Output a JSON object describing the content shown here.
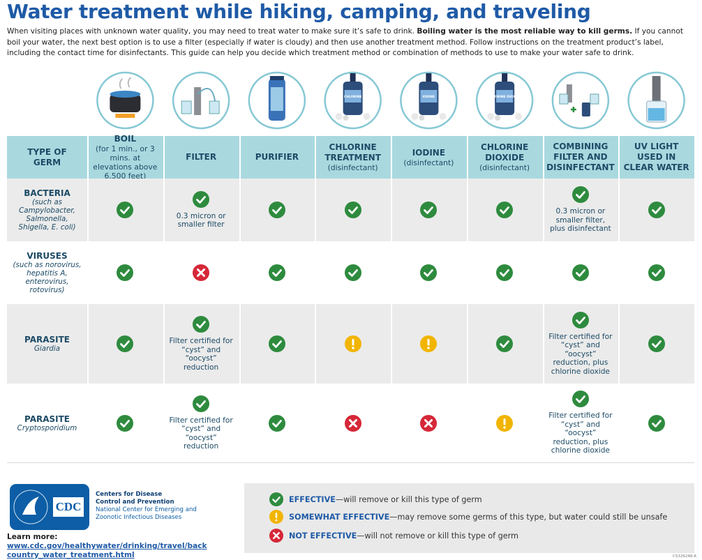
{
  "title": "Water treatment while hiking, camping, and traveling",
  "intro": {
    "lead": "When visiting places with unknown water quality, you may need to treat water to make sure it’s safe to drink. ",
    "emphasis": "Boiling water is the most reliable way to kill germs.",
    "rest": " If you cannot boil your water, the next best option is to use a filter (especially if water is cloudy) and then use another treatment method. Follow instructions on the treatment product’s label, including the contact time for disinfectants. This guide can help you decide which treatment method or combination of methods to use to make your water safe to drink."
  },
  "table": {
    "header": "TYPE OF GERM",
    "columns": [
      {
        "name": "BOIL",
        "note": "(for 1 min., or 3 mins. at elevations above 6,500 feet)"
      },
      {
        "name": "FILTER"
      },
      {
        "name": "PURIFIER"
      },
      {
        "name": "CHLORINE TREATMENT",
        "note": "(disinfectant)",
        "icon_label": "CHLORINE"
      },
      {
        "name": "IODINE",
        "note": "(disinfectant)",
        "icon_label": "IODINE"
      },
      {
        "name": "CHLORINE DIOXIDE",
        "note": "(disinfectant)",
        "icon_label": "CHLORINE DIOXIDE"
      },
      {
        "name": "COMBINING FILTER AND DISINFECTANT"
      },
      {
        "name": "UV LIGHT USED IN CLEAR WATER"
      }
    ],
    "rows": [
      {
        "germ": "BACTERIA",
        "note": "(such as Campylobacter, Salmonella, Shigella, E. coli)",
        "cells": [
          {
            "rating": "EFFECTIVE"
          },
          {
            "rating": "EFFECTIVE",
            "note": "0.3 micron or smaller filter"
          },
          {
            "rating": "EFFECTIVE"
          },
          {
            "rating": "EFFECTIVE"
          },
          {
            "rating": "EFFECTIVE"
          },
          {
            "rating": "EFFECTIVE"
          },
          {
            "rating": "EFFECTIVE",
            "note": "0.3 micron or smaller filter, plus disinfectant"
          },
          {
            "rating": "EFFECTIVE"
          }
        ]
      },
      {
        "germ": "VIRUSES",
        "note": "(such as norovirus, hepatitis A, enterovirus, rotovirus)",
        "cells": [
          {
            "rating": "EFFECTIVE"
          },
          {
            "rating": "NOT EFFECTIVE"
          },
          {
            "rating": "EFFECTIVE"
          },
          {
            "rating": "EFFECTIVE"
          },
          {
            "rating": "EFFECTIVE"
          },
          {
            "rating": "EFFECTIVE"
          },
          {
            "rating": "EFFECTIVE"
          },
          {
            "rating": "EFFECTIVE"
          }
        ]
      },
      {
        "germ": "PARASITE",
        "note": "Giardia",
        "cells": [
          {
            "rating": "EFFECTIVE"
          },
          {
            "rating": "EFFECTIVE",
            "note": "Filter certified for “cyst” and “oocyst” reduction"
          },
          {
            "rating": "EFFECTIVE"
          },
          {
            "rating": "SOMEWHAT EFFECTIVE"
          },
          {
            "rating": "SOMEWHAT EFFECTIVE"
          },
          {
            "rating": "EFFECTIVE"
          },
          {
            "rating": "EFFECTIVE",
            "note": "Filter certified for “cyst” and “oocyst” reduction, plus chlorine dioxide"
          },
          {
            "rating": "EFFECTIVE"
          }
        ]
      },
      {
        "germ": "PARASITE",
        "note": "Cryptosporidium",
        "cells": [
          {
            "rating": "EFFECTIVE"
          },
          {
            "rating": "EFFECTIVE",
            "note": "Filter certified for “cyst” and “oocyst” reduction"
          },
          {
            "rating": "EFFECTIVE"
          },
          {
            "rating": "NOT EFFECTIVE"
          },
          {
            "rating": "NOT EFFECTIVE"
          },
          {
            "rating": "SOMEWHAT EFFECTIVE"
          },
          {
            "rating": "EFFECTIVE",
            "note": "Filter certified for “cyst” and “oocyst” reduction, plus chlorine dioxide"
          },
          {
            "rating": "EFFECTIVE"
          }
        ]
      }
    ]
  },
  "legend": [
    {
      "label": "EFFECTIVE",
      "text": "—will remove or kill this type of germ"
    },
    {
      "label": "SOMEWHAT EFFECTIVE",
      "text": "—may remove some germs of this type, but water could still be unsafe"
    },
    {
      "label": "NOT EFFECTIVE",
      "text": "—will not remove or kill this type of germ"
    }
  ],
  "footer": {
    "logo": "CDC",
    "org": "Centers for Disease Control and Prevention",
    "center": "National Center for Emerging and Zoonotic Infectious Diseases",
    "learn_more": "Learn more:",
    "url": "www.cdc.gov/healthywater/drinking/travel/backcountry_water_treatment.html",
    "code": "CS326248-A"
  }
}
